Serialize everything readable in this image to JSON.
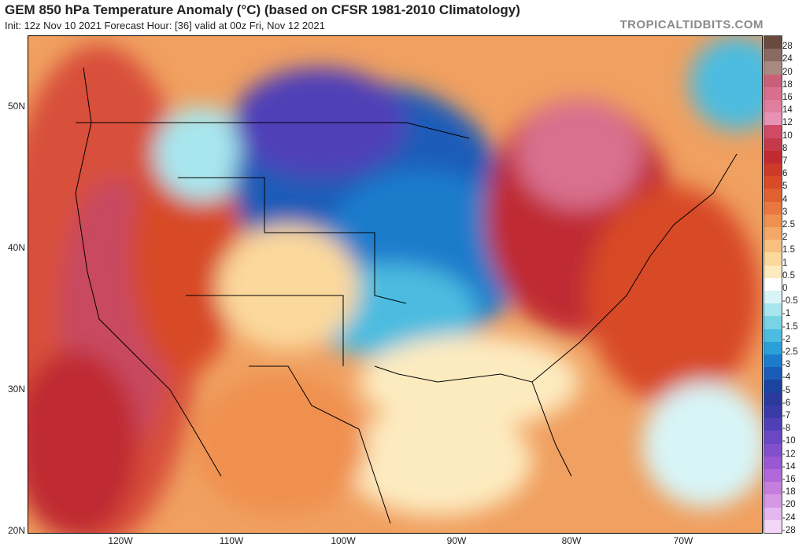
{
  "header": {
    "title": "GEM 850 hPa Temperature Anomaly (°C) (based on CFSR 1981-2010 Climatology)",
    "subtitle": "Init: 12z Nov 10 2021   Forecast Hour: [36]   valid at 00z Fri, Nov 12 2021",
    "site": "TROPICALTIDBITS.COM"
  },
  "map": {
    "lat_labels": [
      "50N",
      "40N",
      "30N",
      "20N"
    ],
    "lon_labels": [
      "120W",
      "110W",
      "100W",
      "90W",
      "80W",
      "70W"
    ]
  },
  "colorbar": {
    "labels": [
      "28",
      "24",
      "20",
      "18",
      "16",
      "14",
      "12",
      "10",
      "8",
      "7",
      "6",
      "5",
      "4",
      "3",
      "2.5",
      "2",
      "1.5",
      "1",
      "0.5",
      "0",
      "-0.5",
      "-1",
      "-1.5",
      "-2",
      "-2.5",
      "-3",
      "-4",
      "-5",
      "-6",
      "-7",
      "-8",
      "-10",
      "-12",
      "-14",
      "-16",
      "-18",
      "-20",
      "-24",
      "-28"
    ],
    "colors": [
      "#6b4a3e",
      "#8a6a60",
      "#a88a80",
      "#c8607a",
      "#d86f8e",
      "#e07ea0",
      "#e893b5",
      "#d04a66",
      "#c43a4a",
      "#c02a30",
      "#cc3a28",
      "#d84a28",
      "#e06030",
      "#e87840",
      "#f09050",
      "#f4a868",
      "#f8c080",
      "#fbd89c",
      "#fdebc0",
      "#ffffff",
      "#d8f4f6",
      "#a8e6ee",
      "#78d4e4",
      "#4cbce0",
      "#2aa0d8",
      "#1c7ccc",
      "#1a5cb8",
      "#1a44a0",
      "#2a3a9c",
      "#3a3aa8",
      "#5040b8",
      "#6a48c4",
      "#8250cc",
      "#9a58d2",
      "#b268d8",
      "#c67ede",
      "#d698e4",
      "#e4b8ee",
      "#f2d8f6"
    ],
    "accent_warm": "#c43a4a",
    "accent_cold": "#1a44a0"
  }
}
